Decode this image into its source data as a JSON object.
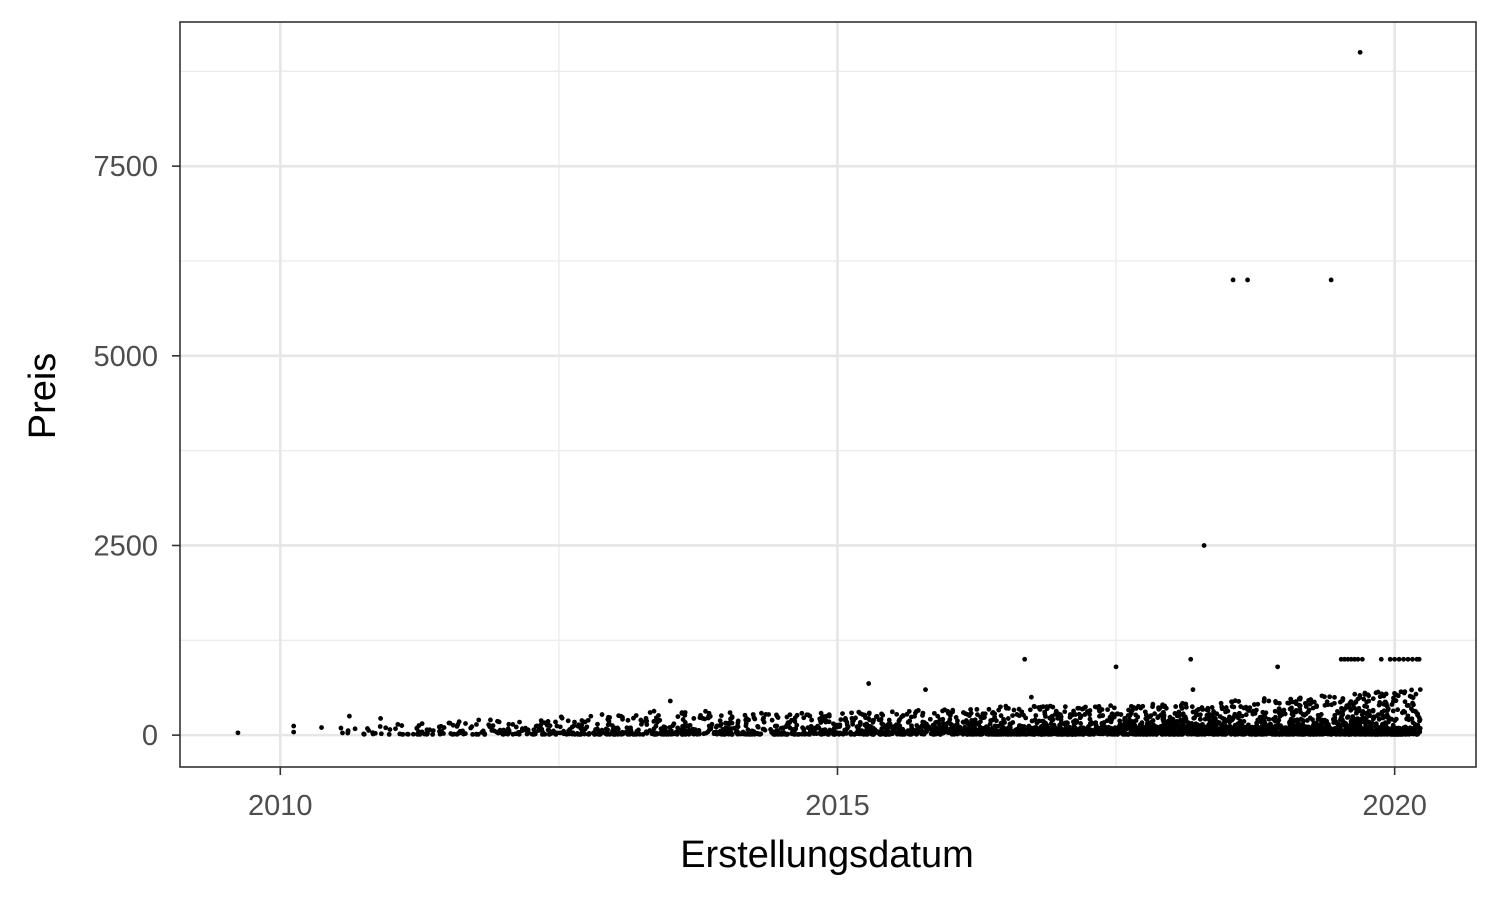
{
  "chart_data": {
    "type": "scatter",
    "title": "",
    "xlabel": "Erstellungsdatum",
    "ylabel": "Preis",
    "x_tick_labels": [
      "2010",
      "2015",
      "2020"
    ],
    "y_tick_labels": [
      "0",
      "2500",
      "5000",
      "7500"
    ],
    "xlim": [
      2009.1,
      2020.73
    ],
    "ylim": [
      -420,
      9400
    ],
    "x_major_ticks": [
      2010,
      2015,
      2020
    ],
    "x_minor_ticks": [
      2012.5,
      2017.5
    ],
    "y_major_ticks": [
      0,
      2500,
      5000,
      7500
    ],
    "y_minor_ticks": [
      1250,
      3750,
      6250,
      8750
    ],
    "grid": true,
    "point_color": "#000000",
    "outliers": [
      {
        "x": 2019.69,
        "y": 9000
      },
      {
        "x": 2018.55,
        "y": 6000
      },
      {
        "x": 2018.68,
        "y": 6000
      },
      {
        "x": 2019.43,
        "y": 6000
      },
      {
        "x": 2018.29,
        "y": 2500
      },
      {
        "x": 2016.68,
        "y": 1000
      },
      {
        "x": 2018.17,
        "y": 1000
      },
      {
        "x": 2017.5,
        "y": 900
      },
      {
        "x": 2018.95,
        "y": 900
      },
      {
        "x": 2015.28,
        "y": 680
      },
      {
        "x": 2015.79,
        "y": 600
      },
      {
        "x": 2018.19,
        "y": 600
      },
      {
        "x": 2013.5,
        "y": 450
      },
      {
        "x": 2016.74,
        "y": 500
      },
      {
        "x": 2009.62,
        "y": 30
      },
      {
        "x": 2010.12,
        "y": 120
      },
      {
        "x": 2010.12,
        "y": 40
      },
      {
        "x": 2010.37,
        "y": 100
      },
      {
        "x": 2010.62,
        "y": 250
      },
      {
        "x": 2010.9,
        "y": 220
      }
    ],
    "cluster_outline": [
      {
        "x": 2010.5,
        "y_max": 100
      },
      {
        "x": 2011.5,
        "y_max": 180
      },
      {
        "x": 2012.5,
        "y_max": 230
      },
      {
        "x": 2013.5,
        "y_max": 320
      },
      {
        "x": 2014.5,
        "y_max": 280
      },
      {
        "x": 2015.5,
        "y_max": 300
      },
      {
        "x": 2016.5,
        "y_max": 380
      },
      {
        "x": 2017.5,
        "y_max": 380
      },
      {
        "x": 2018.5,
        "y_max": 450
      },
      {
        "x": 2019.5,
        "y_max": 520
      },
      {
        "x": 2020.2,
        "y_max": 600
      }
    ],
    "cluster_x_range": [
      2010.5,
      2020.23
    ],
    "cap_points": {
      "y": 1000,
      "x": [
        2019.52,
        2019.55,
        2019.58,
        2019.61,
        2019.64,
        2019.67,
        2019.71,
        2019.88,
        2019.96,
        2020.0,
        2020.04,
        2020.08,
        2020.12,
        2020.16,
        2020.2,
        2020.22
      ]
    }
  }
}
